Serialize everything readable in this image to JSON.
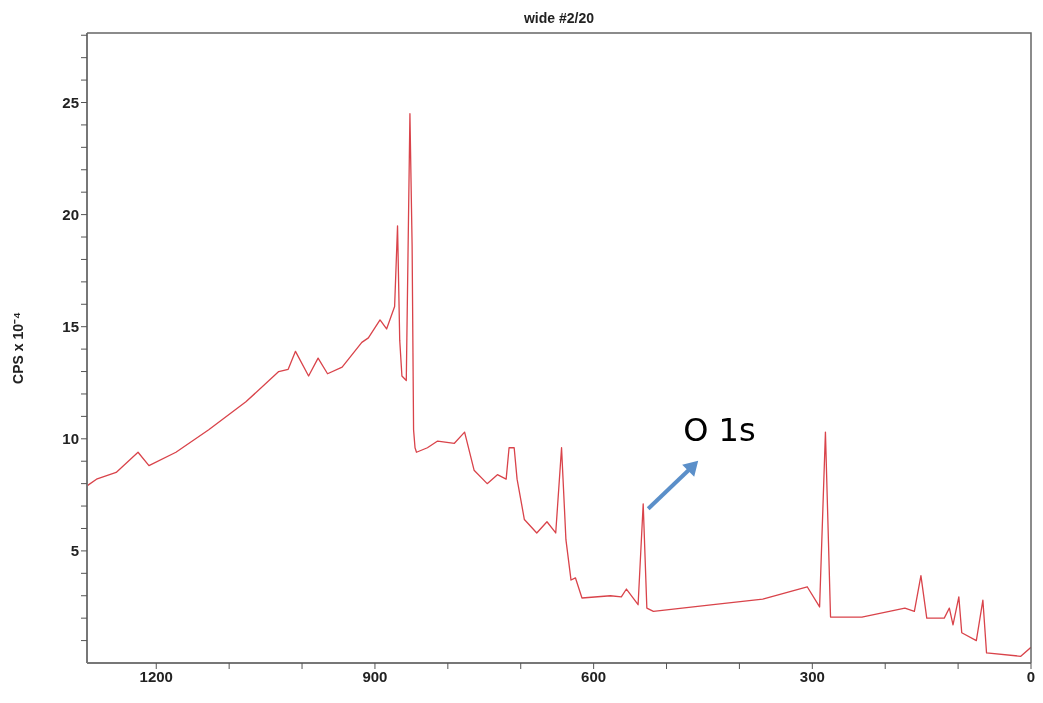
{
  "chart_data": {
    "type": "line",
    "title": "wide #2/20",
    "ylabel": "CPS x 10⁻⁴",
    "x": [
      1295,
      1282,
      1255,
      1225,
      1210,
      1173,
      1128,
      1077,
      1032,
      1019,
      1009,
      991,
      978,
      965,
      945,
      918,
      909,
      893,
      884,
      873,
      869,
      866,
      863,
      857,
      852,
      849,
      847,
      845,
      843,
      828,
      814,
      791,
      777,
      764,
      746,
      732,
      720,
      716,
      709,
      705,
      695,
      678,
      664,
      652,
      644,
      638,
      631,
      625,
      616,
      577,
      562,
      555,
      539,
      532,
      527,
      518,
      436,
      368,
      307,
      290,
      282,
      275,
      232,
      173,
      160,
      151,
      143,
      119,
      112,
      107,
      99,
      95,
      75,
      66,
      61,
      14,
      0
    ],
    "series": [
      {
        "color": "#d9434a",
        "values": [
          7.9,
          8.2,
          8.5,
          9.4,
          8.8,
          9.4,
          10.4,
          11.65,
          13.0,
          13.1,
          13.9,
          12.8,
          13.6,
          12.9,
          13.2,
          14.3,
          14.5,
          15.3,
          14.9,
          15.9,
          19.5,
          14.4,
          12.8,
          12.6,
          24.5,
          18.6,
          10.4,
          9.6,
          9.4,
          9.6,
          9.9,
          9.8,
          10.3,
          8.6,
          8.0,
          8.4,
          8.2,
          9.6,
          9.6,
          8.2,
          6.4,
          5.8,
          6.3,
          5.8,
          9.6,
          5.5,
          3.7,
          3.8,
          2.9,
          3.0,
          2.95,
          3.3,
          2.6,
          7.1,
          2.45,
          2.3,
          2.6,
          2.85,
          3.4,
          2.5,
          10.3,
          2.05,
          2.05,
          2.45,
          2.3,
          3.9,
          2.0,
          2.0,
          2.45,
          1.7,
          2.95,
          1.35,
          1.0,
          2.8,
          0.45,
          0.3,
          0.7
        ]
      }
    ],
    "xlim": [
      1295,
      0
    ],
    "xticks": [
      {
        "value": 1200,
        "label": "1200"
      },
      {
        "value": 1100,
        "label": null
      },
      {
        "value": 1000,
        "label": null
      },
      {
        "value": 900,
        "label": "900"
      },
      {
        "value": 800,
        "label": null
      },
      {
        "value": 700,
        "label": null
      },
      {
        "value": 600,
        "label": "600"
      },
      {
        "value": 500,
        "label": null
      },
      {
        "value": 400,
        "label": null
      },
      {
        "value": 300,
        "label": "300"
      },
      {
        "value": 200,
        "label": null
      },
      {
        "value": 100,
        "label": null
      },
      {
        "value": 0,
        "label": "0"
      }
    ],
    "ylim": [
      0,
      28.1
    ],
    "yticks": [
      {
        "value": 1,
        "label": null
      },
      {
        "value": 2,
        "label": null
      },
      {
        "value": 3,
        "label": null
      },
      {
        "value": 4,
        "label": null
      },
      5,
      {
        "value": 6,
        "label": null
      },
      {
        "value": 7,
        "label": null
      },
      {
        "value": 8,
        "label": null
      },
      {
        "value": 9,
        "label": null
      },
      10,
      {
        "value": 11,
        "label": null
      },
      {
        "value": 12,
        "label": null
      },
      {
        "value": 13,
        "label": null
      },
      {
        "value": 14,
        "label": null
      },
      15,
      {
        "value": 16,
        "label": null
      },
      {
        "value": 17,
        "label": null
      },
      {
        "value": 18,
        "label": null
      },
      {
        "value": 19,
        "label": null
      },
      20,
      {
        "value": 21,
        "label": null
      },
      {
        "value": 22,
        "label": null
      },
      {
        "value": 23,
        "label": null
      },
      {
        "value": 24,
        "label": null
      },
      25,
      {
        "value": 26,
        "label": null
      },
      {
        "value": 27,
        "label": null
      },
      {
        "value": 28,
        "label": null
      }
    ],
    "annotations": [
      {
        "text": "O 1s",
        "x": 532,
        "y": 7.1
      }
    ],
    "grid": false,
    "marker": "none",
    "line_style": "solid"
  }
}
